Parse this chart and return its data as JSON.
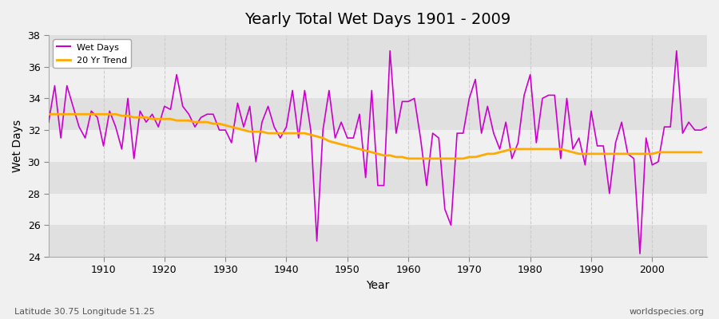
{
  "title": "Yearly Total Wet Days 1901 - 2009",
  "xlabel": "Year",
  "ylabel": "Wet Days",
  "subtitle": "Latitude 30.75 Longitude 51.25",
  "watermark": "worldspecies.org",
  "ylim": [
    24,
    38
  ],
  "xlim": [
    1901,
    2009
  ],
  "bg_color": "#f0f0f0",
  "plot_bg_color": "#f0f0f0",
  "band_color": "#e0e0e0",
  "grid_color": "#cccccc",
  "line_color": "#cc00cc",
  "trend_color": "#ffaa00",
  "years": [
    1901,
    1902,
    1903,
    1904,
    1905,
    1906,
    1907,
    1908,
    1909,
    1910,
    1911,
    1912,
    1913,
    1914,
    1915,
    1916,
    1917,
    1918,
    1919,
    1920,
    1921,
    1922,
    1923,
    1924,
    1925,
    1926,
    1927,
    1928,
    1929,
    1930,
    1931,
    1932,
    1933,
    1934,
    1935,
    1936,
    1937,
    1938,
    1939,
    1940,
    1941,
    1942,
    1943,
    1944,
    1945,
    1946,
    1947,
    1948,
    1949,
    1950,
    1951,
    1952,
    1953,
    1954,
    1955,
    1956,
    1957,
    1958,
    1959,
    1960,
    1961,
    1962,
    1963,
    1964,
    1965,
    1966,
    1967,
    1968,
    1969,
    1970,
    1971,
    1972,
    1973,
    1974,
    1975,
    1976,
    1977,
    1978,
    1979,
    1980,
    1981,
    1982,
    1983,
    1984,
    1985,
    1986,
    1987,
    1988,
    1989,
    1990,
    1991,
    1992,
    1993,
    1994,
    1995,
    1996,
    1997,
    1998,
    1999,
    2000,
    2001,
    2002,
    2003,
    2004,
    2005,
    2006,
    2007,
    2008,
    2009
  ],
  "wet_days": [
    32.5,
    34.8,
    31.5,
    34.8,
    33.5,
    32.2,
    31.5,
    33.2,
    32.8,
    31.0,
    33.2,
    32.2,
    30.8,
    34.0,
    30.2,
    33.2,
    32.5,
    33.0,
    32.2,
    33.5,
    33.3,
    35.5,
    33.5,
    33.0,
    32.2,
    32.8,
    33.0,
    33.0,
    32.0,
    32.0,
    31.2,
    33.7,
    32.2,
    33.5,
    30.0,
    32.5,
    33.5,
    32.2,
    31.5,
    32.2,
    34.5,
    31.5,
    34.5,
    32.0,
    25.0,
    32.0,
    34.5,
    31.5,
    32.5,
    31.5,
    31.5,
    33.0,
    29.0,
    34.5,
    28.5,
    28.5,
    37.0,
    31.8,
    33.8,
    33.8,
    34.0,
    31.5,
    28.5,
    31.8,
    31.5,
    27.0,
    26.0,
    31.8,
    31.8,
    34.0,
    35.2,
    31.8,
    33.5,
    31.8,
    30.8,
    32.5,
    30.2,
    31.2,
    34.2,
    35.5,
    31.2,
    34.0,
    34.2,
    34.2,
    30.2,
    34.0,
    30.8,
    31.5,
    29.8,
    33.2,
    31.0,
    31.0,
    28.0,
    31.2,
    32.5,
    30.5,
    30.2,
    24.2,
    31.5,
    29.8,
    30.0,
    32.2,
    32.2,
    37.0,
    31.8,
    32.5,
    32.0,
    32.0,
    32.2
  ],
  "trend": [
    33.0,
    33.0,
    33.0,
    33.0,
    33.0,
    33.0,
    33.0,
    33.0,
    33.0,
    33.0,
    33.0,
    33.0,
    32.9,
    32.9,
    32.8,
    32.8,
    32.8,
    32.7,
    32.7,
    32.7,
    32.7,
    32.6,
    32.6,
    32.6,
    32.5,
    32.5,
    32.5,
    32.4,
    32.4,
    32.3,
    32.2,
    32.1,
    32.0,
    31.9,
    31.9,
    31.9,
    31.8,
    31.8,
    31.8,
    31.8,
    31.8,
    31.8,
    31.8,
    31.7,
    31.6,
    31.5,
    31.3,
    31.2,
    31.1,
    31.0,
    30.9,
    30.8,
    30.7,
    30.6,
    30.5,
    30.4,
    30.4,
    30.3,
    30.3,
    30.2,
    30.2,
    30.2,
    30.2,
    30.2,
    30.2,
    30.2,
    30.2,
    30.2,
    30.2,
    30.3,
    30.3,
    30.4,
    30.5,
    30.5,
    30.6,
    30.7,
    30.8,
    30.8,
    30.8,
    30.8,
    30.8,
    30.8,
    30.8,
    30.8,
    30.8,
    30.7,
    30.6,
    30.5,
    30.5,
    30.5,
    30.5,
    30.5,
    30.5,
    30.5,
    30.5,
    30.5,
    30.5,
    30.5,
    30.5,
    30.5,
    30.6,
    30.6,
    30.6,
    30.6,
    30.6,
    30.6,
    30.6,
    30.6,
    null
  ],
  "yticks": [
    24,
    26,
    28,
    30,
    32,
    34,
    36,
    38
  ],
  "xticks": [
    1910,
    1920,
    1930,
    1940,
    1950,
    1960,
    1970,
    1980,
    1990,
    2000
  ]
}
